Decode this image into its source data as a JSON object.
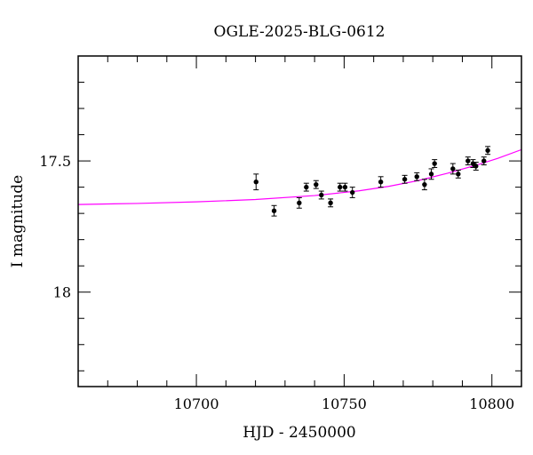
{
  "chart_data": {
    "type": "scatter",
    "title": "OGLE-2025-BLG-0612",
    "xlabel": "HJD - 2450000",
    "ylabel": "I magnitude",
    "xlim": [
      10660,
      10810
    ],
    "ylim": [
      18.36,
      17.1
    ],
    "y_inverted": true,
    "x_major_ticks": [
      10700,
      10750,
      10800
    ],
    "x_tick_labels": [
      "10700",
      "10750",
      "10800"
    ],
    "y_major_ticks": [
      17.5,
      18
    ],
    "y_tick_labels": [
      "17.5",
      "18"
    ],
    "grid": false,
    "legend": "none",
    "colors": {
      "points": "#000000",
      "model": "#ff00ff"
    },
    "series": [
      {
        "kind": "points_with_errorbars",
        "x": [
          10720.2,
          10726.3,
          10734.8,
          10737.2,
          10740.5,
          10742.3,
          10745.4,
          10748.6,
          10750.3,
          10752.8,
          10762.4,
          10770.5,
          10774.6,
          10777.2,
          10779.5,
          10780.6,
          10786.8,
          10788.6,
          10791.9,
          10793.6,
          10794.6,
          10797.3,
          10798.6
        ],
        "y": [
          17.58,
          17.69,
          17.66,
          17.6,
          17.59,
          17.63,
          17.66,
          17.6,
          17.6,
          17.62,
          17.58,
          17.57,
          17.56,
          17.59,
          17.55,
          17.51,
          17.53,
          17.55,
          17.5,
          17.51,
          17.52,
          17.5,
          17.46
        ],
        "yerr": [
          0.03,
          0.02,
          0.02,
          0.015,
          0.015,
          0.015,
          0.015,
          0.015,
          0.015,
          0.02,
          0.02,
          0.015,
          0.015,
          0.02,
          0.02,
          0.015,
          0.02,
          0.015,
          0.015,
          0.015,
          0.015,
          0.015,
          0.015
        ]
      },
      {
        "kind": "model_curve",
        "x": [
          10660,
          10680,
          10700,
          10720,
          10740,
          10755,
          10765,
          10775,
          10785,
          10795,
          10802,
          10810
        ],
        "y": [
          17.666,
          17.662,
          17.656,
          17.647,
          17.632,
          17.614,
          17.597,
          17.575,
          17.547,
          17.515,
          17.49,
          17.457
        ]
      }
    ]
  }
}
